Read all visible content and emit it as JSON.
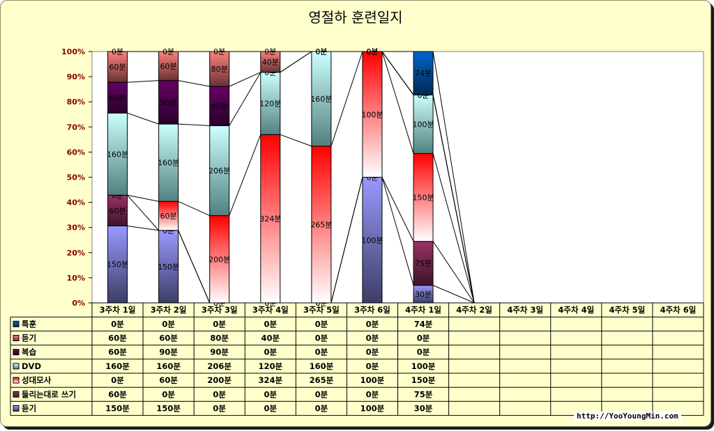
{
  "chart_data": {
    "type": "bar",
    "stacked": "percent",
    "title": "영절하 훈련일지",
    "categories": [
      "3주차 1일",
      "3주차 2일",
      "3주차 3일",
      "3주차 4일",
      "3주차 5일",
      "3주차 6일",
      "4주차 1일",
      "4주차 2일",
      "4주차 3일",
      "4주차 4일",
      "4주차 5일",
      "4주차 6일"
    ],
    "y_ticks": [
      "0%",
      "10%",
      "20%",
      "30%",
      "40%",
      "50%",
      "60%",
      "70%",
      "80%",
      "90%",
      "100%"
    ],
    "ylim": [
      0,
      100
    ],
    "unit": "분",
    "series_lines": true,
    "series": [
      {
        "name": "듣기",
        "values": [
          150,
          150,
          0,
          0,
          0,
          100,
          30,
          null,
          null,
          null,
          null,
          null
        ],
        "color_top": "#9999ff",
        "color_bottom": "#3d3d66"
      },
      {
        "name": "들리는대로 쓰기",
        "values": [
          60,
          0,
          0,
          0,
          0,
          0,
          75,
          null,
          null,
          null,
          null,
          null
        ],
        "color_top": "#993366",
        "color_bottom": "#3d1428"
      },
      {
        "name": "성대모사",
        "values": [
          0,
          60,
          200,
          324,
          265,
          100,
          150,
          null,
          null,
          null,
          null,
          null
        ],
        "color_top": "#ff0000",
        "color_bottom": "#ffffff"
      },
      {
        "name": "DVD",
        "values": [
          160,
          160,
          206,
          120,
          160,
          0,
          100,
          null,
          null,
          null,
          null,
          null
        ],
        "color_top": "#ccffff",
        "color_bottom": "#528080"
      },
      {
        "name": "복습",
        "values": [
          60,
          90,
          90,
          0,
          0,
          0,
          0,
          null,
          null,
          null,
          null,
          null
        ],
        "color_top": "#660066",
        "color_bottom": "#290029"
      },
      {
        "name": "듣기",
        "values": [
          60,
          60,
          80,
          40,
          0,
          0,
          0,
          null,
          null,
          null,
          null,
          null
        ],
        "color_top": "#ff8080",
        "color_bottom": "#663333"
      },
      {
        "name": "특훈",
        "values": [
          0,
          0,
          0,
          0,
          0,
          0,
          74,
          null,
          null,
          null,
          null,
          null
        ],
        "color_top": "#0066cc",
        "color_bottom": "#002952"
      }
    ]
  },
  "footer": {
    "url": "http://YooYoungMin.com"
  }
}
